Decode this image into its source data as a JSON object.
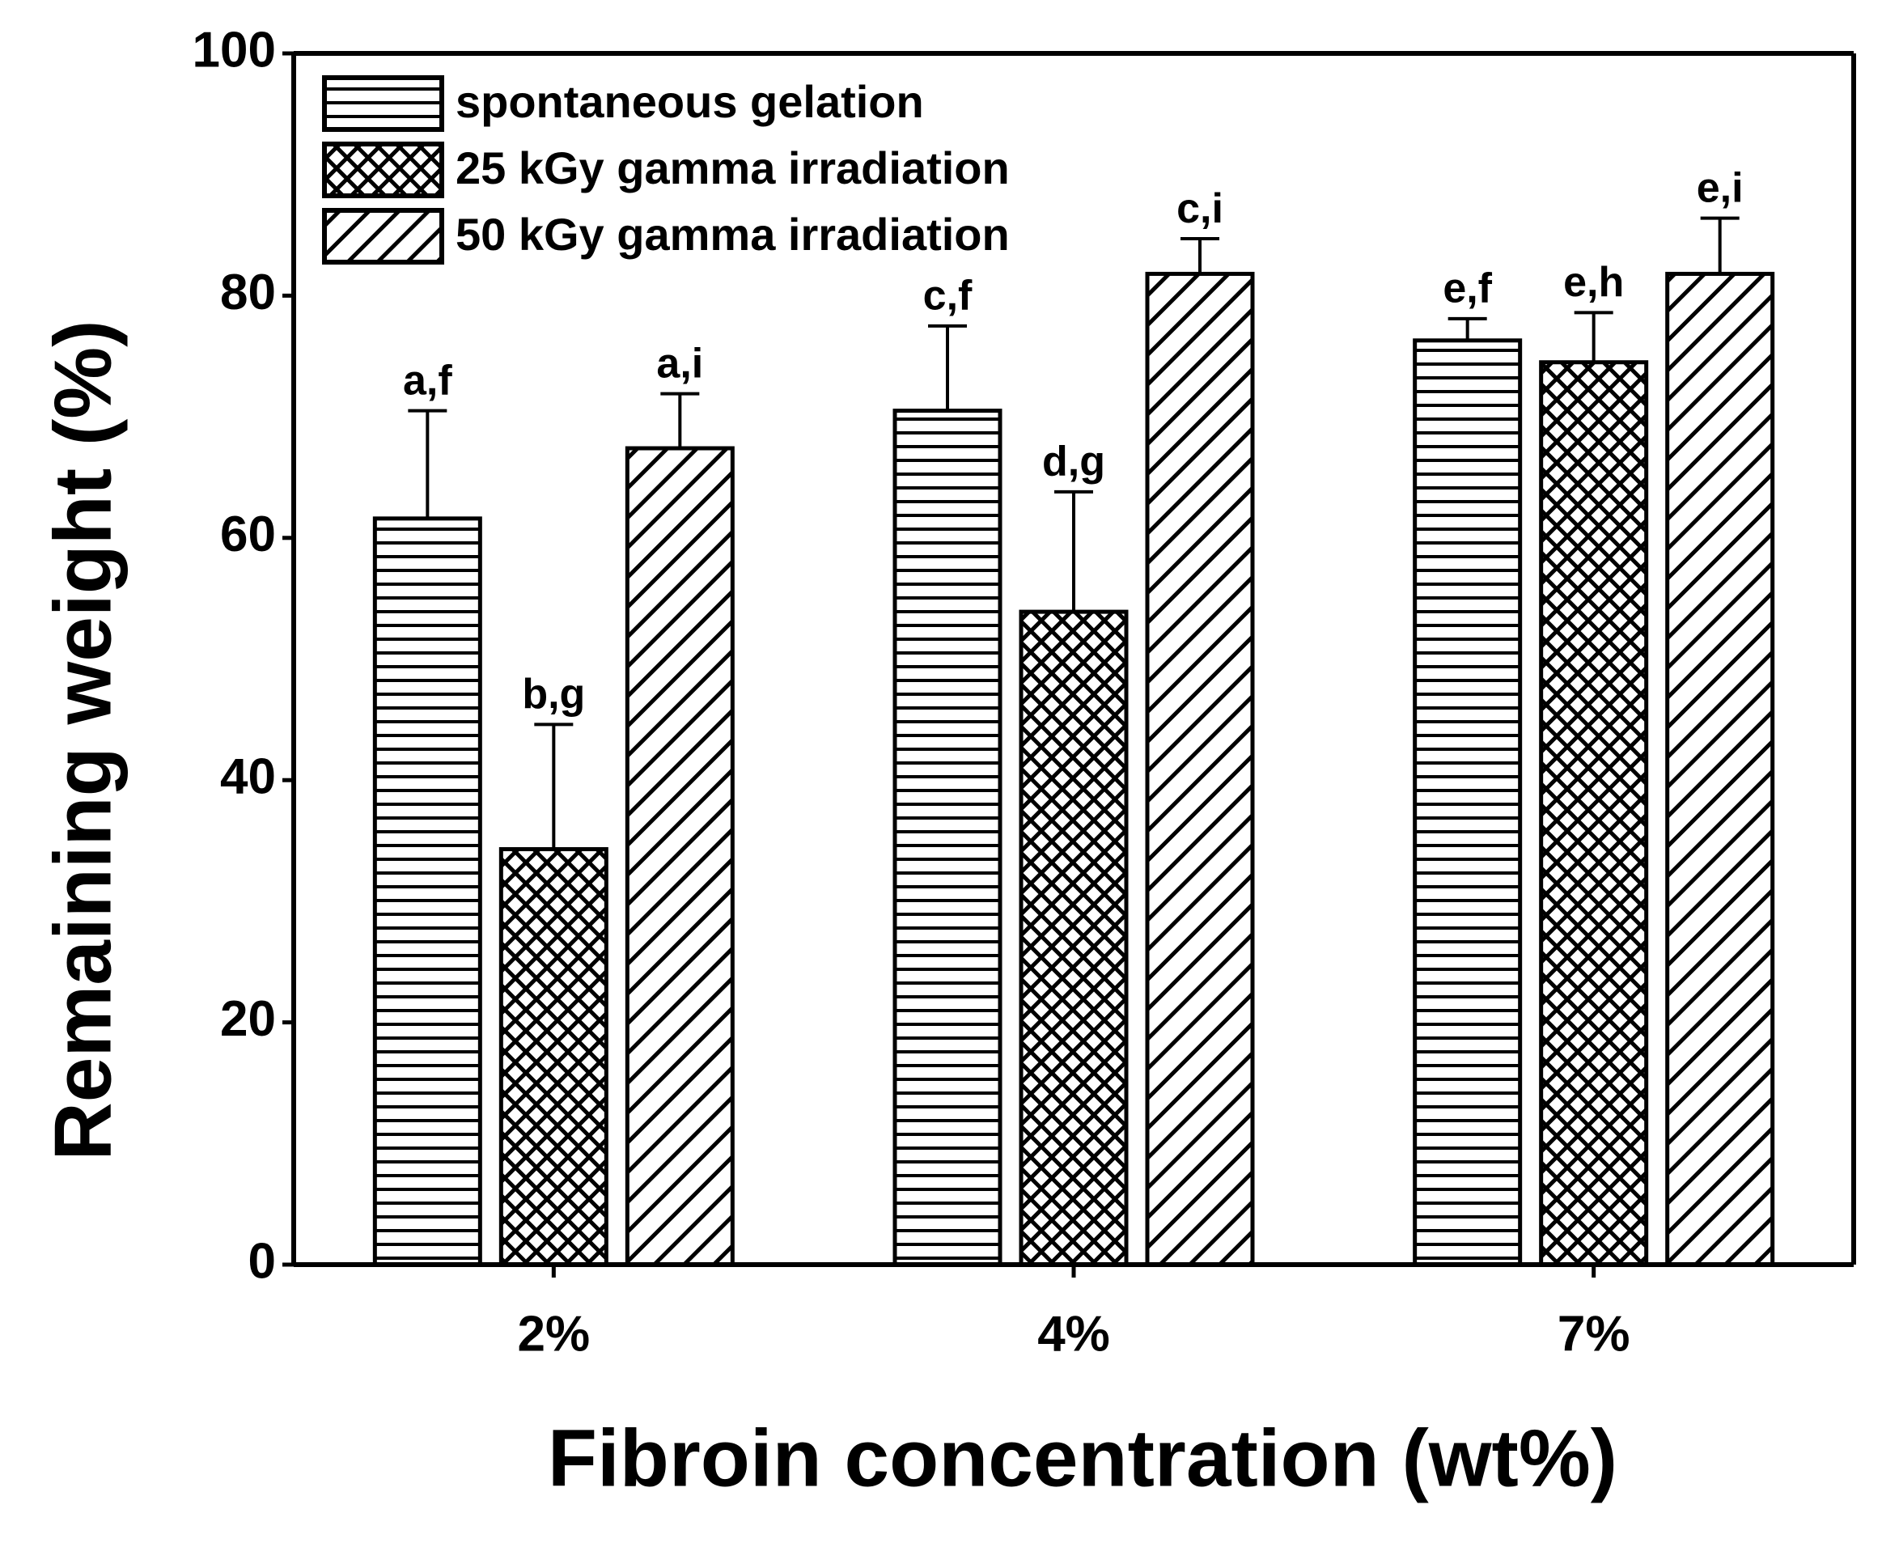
{
  "chart_data": {
    "type": "bar",
    "x_label": "Fibroin concentration (wt%)",
    "y_label": "Remaining weight (%)",
    "categories": [
      "2%",
      "4%",
      "7%"
    ],
    "series": [
      {
        "name": "spontaneous gelation",
        "color": "#000000",
        "pattern": "horizontal",
        "values": [
          61.6,
          70.5,
          76.3
        ],
        "errors": [
          8.9,
          7.0,
          1.8
        ],
        "labels": [
          "a,f",
          "c,f",
          "e,f"
        ]
      },
      {
        "name": "25 kGy gamma irradiation",
        "color": "#000000",
        "pattern": "crosshatch",
        "values": [
          34.3,
          53.9,
          74.5
        ],
        "errors": [
          10.3,
          9.9,
          4.1
        ],
        "labels": [
          "b,g",
          "d,g",
          "e,h"
        ]
      },
      {
        "name": "50 kGy gamma irradiation",
        "color": "#000000",
        "pattern": "diagonal",
        "values": [
          67.4,
          81.8,
          81.8
        ],
        "errors": [
          4.5,
          2.9,
          4.6
        ],
        "labels": [
          "a,i",
          "c,i",
          "e,i"
        ]
      }
    ],
    "ylim": [
      0,
      100
    ],
    "yticks": [
      0,
      20,
      40,
      60,
      80,
      100
    ],
    "grid": false,
    "legend": "upper left"
  }
}
